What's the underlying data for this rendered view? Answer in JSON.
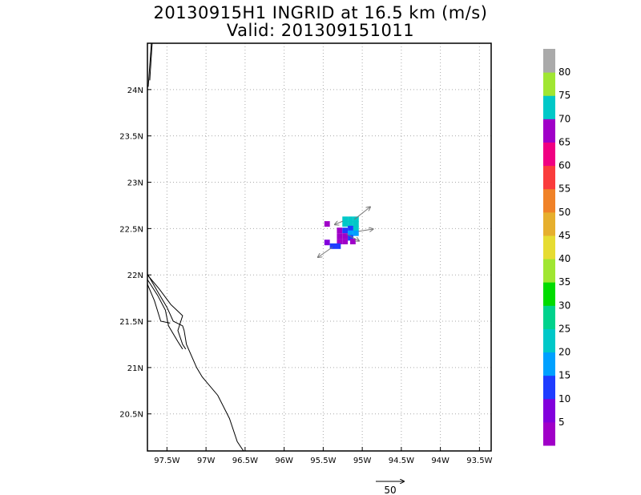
{
  "title": {
    "line1": "20130915H1 INGRID at 16.5 km (m/s)",
    "line2": "Valid: 201309151011"
  },
  "map": {
    "lon_range": [
      -97.75,
      -93.35
    ],
    "lat_range": [
      20.1,
      24.5
    ],
    "grid": true,
    "lon_ticks": [
      {
        "value": -97.5,
        "label": "97.5W"
      },
      {
        "value": -97.0,
        "label": "97W"
      },
      {
        "value": -96.5,
        "label": "96.5W"
      },
      {
        "value": -96.0,
        "label": "96W"
      },
      {
        "value": -95.5,
        "label": "95.5W"
      },
      {
        "value": -95.0,
        "label": "95W"
      },
      {
        "value": -94.5,
        "label": "94.5W"
      },
      {
        "value": -94.0,
        "label": "94W"
      },
      {
        "value": -93.5,
        "label": "93.5W"
      }
    ],
    "lat_ticks": [
      {
        "value": 20.5,
        "label": "20.5N"
      },
      {
        "value": 21.0,
        "label": "21N"
      },
      {
        "value": 21.5,
        "label": "21.5N"
      },
      {
        "value": 22.0,
        "label": "22N"
      },
      {
        "value": 22.5,
        "label": "22.5N"
      },
      {
        "value": 23.0,
        "label": "23N"
      },
      {
        "value": 23.5,
        "label": "23.5N"
      },
      {
        "value": 24.0,
        "label": "24N"
      }
    ],
    "coastlines": [
      [
        [
          -97.74,
          24.03
        ],
        [
          -97.7,
          24.5
        ]
      ],
      [
        [
          -97.72,
          24.1
        ],
        [
          -97.69,
          24.5
        ]
      ],
      [
        [
          -97.75,
          22.01
        ],
        [
          -97.62,
          21.82
        ],
        [
          -97.5,
          21.65
        ],
        [
          -97.42,
          21.5
        ],
        [
          -97.3,
          21.45
        ],
        [
          -97.28,
          21.4
        ],
        [
          -97.25,
          21.25
        ],
        [
          -97.12,
          21.0
        ],
        [
          -97.05,
          20.9
        ],
        [
          -96.85,
          20.7
        ],
        [
          -96.7,
          20.45
        ],
        [
          -96.6,
          20.2
        ],
        [
          -96.52,
          20.1
        ]
      ],
      [
        [
          -97.75,
          22.0
        ],
        [
          -97.6,
          21.85
        ],
        [
          -97.45,
          21.68
        ],
        [
          -97.3,
          21.56
        ],
        [
          -97.36,
          21.4
        ],
        [
          -97.3,
          21.25
        ],
        [
          -97.26,
          21.2
        ]
      ],
      [
        [
          -97.75,
          21.95
        ],
        [
          -97.62,
          21.78
        ],
        [
          -97.52,
          21.62
        ],
        [
          -97.48,
          21.45
        ],
        [
          -97.36,
          21.28
        ],
        [
          -97.3,
          21.2
        ]
      ],
      [
        [
          -97.75,
          21.9
        ],
        [
          -97.66,
          21.72
        ],
        [
          -97.58,
          21.5
        ],
        [
          -97.46,
          21.48
        ]
      ]
    ]
  },
  "wind_cells": [
    {
      "lon": -95.45,
      "lat": 22.55,
      "speed": 68
    },
    {
      "lon": -95.22,
      "lat": 22.6,
      "speed": 72
    },
    {
      "lon": -95.15,
      "lat": 22.6,
      "speed": 72
    },
    {
      "lon": -95.08,
      "lat": 22.6,
      "speed": 74
    },
    {
      "lon": -95.22,
      "lat": 22.55,
      "speed": 73
    },
    {
      "lon": -95.15,
      "lat": 22.55,
      "speed": 72
    },
    {
      "lon": -95.08,
      "lat": 22.55,
      "speed": 72
    },
    {
      "lon": -95.15,
      "lat": 22.5,
      "speed": 14
    },
    {
      "lon": -95.08,
      "lat": 22.5,
      "speed": 72
    },
    {
      "lon": -95.29,
      "lat": 22.48,
      "speed": 68
    },
    {
      "lon": -95.22,
      "lat": 22.48,
      "speed": 12
    },
    {
      "lon": -95.15,
      "lat": 22.45,
      "speed": 16
    },
    {
      "lon": -95.08,
      "lat": 22.45,
      "speed": 15
    },
    {
      "lon": -95.29,
      "lat": 22.42,
      "speed": 68
    },
    {
      "lon": -95.22,
      "lat": 22.42,
      "speed": 66
    },
    {
      "lon": -95.15,
      "lat": 22.4,
      "speed": 12
    },
    {
      "lon": -95.29,
      "lat": 22.36,
      "speed": 68
    },
    {
      "lon": -95.22,
      "lat": 22.36,
      "speed": 66
    },
    {
      "lon": -95.12,
      "lat": 22.36,
      "speed": 68
    },
    {
      "lon": -95.45,
      "lat": 22.35,
      "speed": 8
    },
    {
      "lon": -95.38,
      "lat": 22.31,
      "speed": 12
    },
    {
      "lon": -95.31,
      "lat": 22.31,
      "speed": 12
    }
  ],
  "wind_vectors": [
    {
      "lon": -95.1,
      "lat": 22.6,
      "u": 28,
      "v": 22
    },
    {
      "lon": -95.25,
      "lat": 22.58,
      "u": -14,
      "v": -6
    },
    {
      "lon": -95.05,
      "lat": 22.47,
      "u": 26,
      "v": 4
    },
    {
      "lon": -95.2,
      "lat": 22.44,
      "u": 22,
      "v": -12
    },
    {
      "lon": -95.38,
      "lat": 22.3,
      "u": -26,
      "v": -18
    }
  ],
  "reference_vector": {
    "label": "50",
    "magnitude": 50
  },
  "colorbar": {
    "bins": [
      {
        "color": "#a000c8"
      },
      {
        "color": "#8200dc"
      },
      {
        "color": "#1e3cff"
      },
      {
        "color": "#00a0ff"
      },
      {
        "color": "#00c8c8"
      },
      {
        "color": "#00d28c"
      },
      {
        "color": "#00dc00"
      },
      {
        "color": "#a0e632"
      },
      {
        "color": "#e6dc32"
      },
      {
        "color": "#e6af2d"
      },
      {
        "color": "#f08228"
      },
      {
        "color": "#fa3c3c"
      },
      {
        "color": "#f00082"
      },
      {
        "color": "#a000c8"
      },
      {
        "color": "#00c8c8"
      },
      {
        "color": "#a0e632"
      },
      {
        "color": "#aaaaaa"
      }
    ],
    "labels": [
      "5",
      "10",
      "15",
      "20",
      "25",
      "30",
      "35",
      "40",
      "45",
      "50",
      "55",
      "60",
      "65",
      "70",
      "75",
      "80"
    ]
  }
}
